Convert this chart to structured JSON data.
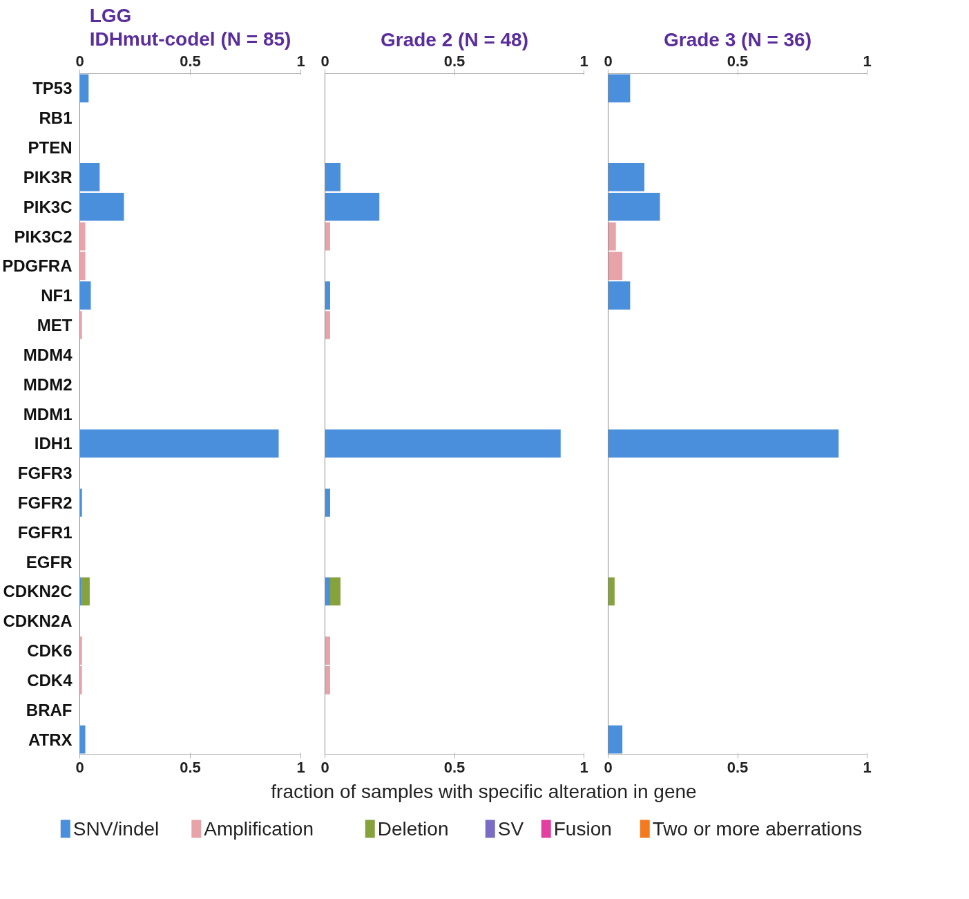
{
  "chart_data": [
    {
      "type": "bar",
      "orientation": "horizontal",
      "stacked": true,
      "title": "LGG\nIDHmut-codel (N = 85)",
      "categories": [
        "TP53",
        "RB1",
        "PTEN",
        "PIK3R",
        "PIK3C",
        "PIK3C2",
        "PDGFRA",
        "NF1",
        "MET",
        "MDM4",
        "MDM2",
        "MDM1",
        "IDH1",
        "FGFR3",
        "FGFR2",
        "FGFR1",
        "EGFR",
        "CDKN2C",
        "CDKN2A",
        "CDK6",
        "CDK4",
        "BRAF",
        "ATRX"
      ],
      "series": [
        {
          "color": "#4a8fdb",
          "values": [
            0.04,
            0,
            0,
            0.09,
            0.2,
            0,
            0,
            0.05,
            0,
            0,
            0,
            0,
            0.9,
            0,
            0.01,
            0,
            0,
            0.01,
            0,
            0,
            0,
            0,
            0.025
          ]
        },
        {
          "color": "#e8a3a8",
          "values": [
            0,
            0,
            0,
            0,
            0,
            0.025,
            0.025,
            0,
            0.01,
            0,
            0,
            0,
            0,
            0,
            0,
            0,
            0,
            0,
            0,
            0.01,
            0.01,
            0,
            0
          ]
        },
        {
          "color": "#86a23c",
          "values": [
            0,
            0,
            0,
            0,
            0,
            0,
            0,
            0,
            0,
            0,
            0,
            0,
            0,
            0,
            0,
            0,
            0,
            0.035,
            0,
            0,
            0,
            0,
            0
          ]
        }
      ],
      "xlim": [
        0,
        1
      ],
      "xticks": [
        0,
        0.5,
        1
      ],
      "x2lim": [
        0,
        1
      ],
      "x2ticks": [
        0,
        0.5,
        1
      ],
      "grid": false
    },
    {
      "type": "bar",
      "orientation": "horizontal",
      "stacked": true,
      "title": "Grade 2 (N = 48)",
      "xlabel": "fraction of samples with specific alteration in gene",
      "categories": [
        null,
        null,
        null,
        null,
        null,
        null,
        null,
        null,
        null,
        null,
        null,
        null,
        null,
        null,
        null,
        null,
        null,
        null,
        null,
        null,
        null,
        null,
        null
      ],
      "series": [
        {
          "name": "SNV/indel",
          "color": "#4a8fdb",
          "values": [
            0,
            0,
            0,
            0.06,
            0.21,
            0,
            0,
            0.02,
            0,
            0,
            0,
            0,
            0.91,
            0,
            0.02,
            0,
            0,
            0.02,
            0,
            0,
            0,
            0,
            0
          ]
        },
        {
          "name": "Amplification",
          "color": "#e8a3a8",
          "values": [
            0,
            0,
            0,
            0,
            0,
            0.02,
            0,
            0,
            0.02,
            0,
            0,
            0,
            0,
            0,
            0,
            0,
            0,
            0,
            0,
            0.02,
            0.02,
            0,
            0
          ]
        },
        {
          "name": "Deletion",
          "color": "#86a23c",
          "values": [
            0,
            0,
            0,
            0,
            0,
            0,
            0,
            0,
            0,
            0,
            0,
            0,
            0,
            0,
            0,
            0,
            0,
            0.04,
            0,
            0,
            0,
            0,
            0
          ]
        },
        {
          "name": "SV",
          "color": "#7a6cc4",
          "values": [
            0,
            0,
            0,
            0,
            0,
            0,
            0,
            0,
            0,
            0,
            0,
            0,
            0,
            0,
            0,
            0,
            0,
            0,
            0,
            0,
            0,
            0,
            0
          ]
        },
        {
          "name": "Fusion",
          "color": "#e23fa0",
          "values": [
            0,
            0,
            0,
            0,
            0,
            0,
            0,
            0,
            0,
            0,
            0,
            0,
            0,
            0,
            0,
            0,
            0,
            0,
            0,
            0,
            0,
            0,
            0
          ]
        },
        {
          "name": "Two or more aberrations",
          "color": "#f37a1f",
          "values": [
            0,
            0,
            0,
            0,
            0,
            0,
            0,
            0,
            0,
            0,
            0,
            0,
            0,
            0,
            0,
            0,
            0,
            0,
            0,
            0,
            0,
            0,
            0
          ]
        }
      ],
      "xlim": [
        0,
        1
      ],
      "xticks": [
        0,
        0.5,
        1
      ],
      "x2lim": [
        0,
        1
      ],
      "x2ticks": [
        0,
        0.5,
        1
      ],
      "grid": false,
      "legend": "bottom"
    },
    {
      "type": "bar",
      "orientation": "horizontal",
      "stacked": true,
      "title": "Grade 3 (N = 36)",
      "categories": [
        null,
        null,
        null,
        null,
        null,
        null,
        null,
        null,
        null,
        null,
        null,
        null,
        null,
        null,
        null,
        null,
        null,
        null,
        null,
        null,
        null,
        null,
        null
      ],
      "series": [
        {
          "color": "#4a8fdb",
          "values": [
            0.085,
            0,
            0,
            0.14,
            0.2,
            0,
            0,
            0.085,
            0,
            0,
            0,
            0,
            0.89,
            0,
            0,
            0,
            0,
            0,
            0,
            0,
            0,
            0,
            0.055
          ]
        },
        {
          "color": "#e8a3a8",
          "values": [
            0,
            0,
            0,
            0,
            0,
            0.03,
            0.055,
            0,
            0,
            0,
            0,
            0,
            0,
            0,
            0,
            0,
            0,
            0,
            0,
            0,
            0,
            0,
            0
          ]
        },
        {
          "color": "#86a23c",
          "values": [
            0,
            0,
            0,
            0,
            0,
            0,
            0,
            0,
            0,
            0,
            0,
            0,
            0,
            0,
            0,
            0,
            0,
            0.025,
            0,
            0,
            0,
            0,
            0
          ]
        }
      ],
      "xlim": [
        0,
        1
      ],
      "xticks": [
        0,
        0.5,
        1
      ],
      "x2lim": [
        0,
        1
      ],
      "x2ticks": [
        0,
        0.5,
        1
      ],
      "grid": false
    }
  ]
}
